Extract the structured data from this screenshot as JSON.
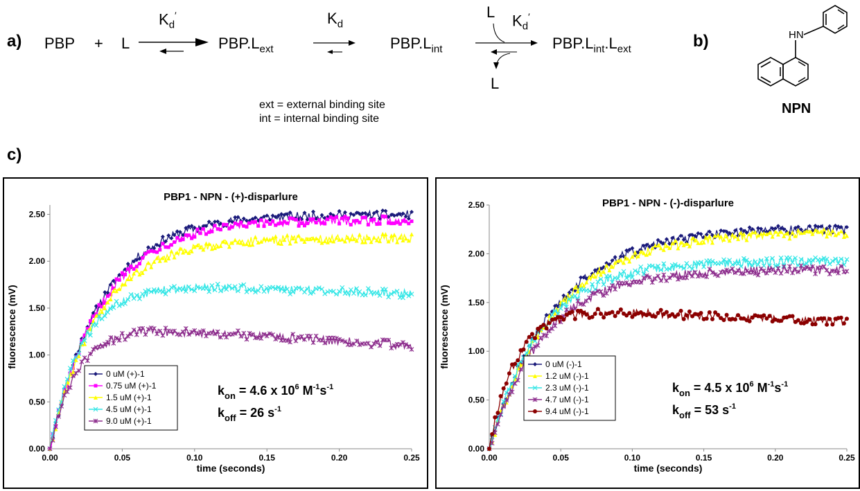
{
  "panel_labels": {
    "a": "a)",
    "b": "b)",
    "c": "c)"
  },
  "scheme": {
    "pbp": "PBP",
    "plus": "+",
    "ligand": "L",
    "k1": {
      "base": "K",
      "sub": "d",
      "prime": "′"
    },
    "prod1": {
      "base": "PBP.L",
      "sub": "ext"
    },
    "k2": {
      "base": "K",
      "sub": "d"
    },
    "prod2": {
      "base": "PBP.L",
      "sub": "int"
    },
    "k3": {
      "base": "K",
      "sub": "d",
      "prime": "′"
    },
    "l_in": "L",
    "l_out": "L",
    "prod3": {
      "base": "PBP.L",
      "sub1": "int",
      "mid": ".L",
      "sub2": "ext"
    },
    "note_ext": "ext = external binding site",
    "note_int": "int = internal binding site"
  },
  "molecule": {
    "nh": "HN",
    "name": "NPN"
  },
  "colors": {
    "s0": "#1a1a7a",
    "s075": "#ff00ff",
    "s15": "#ffff00",
    "s45": "#33e6e6",
    "s9": "#8b2a8b",
    "s94": "#8b0000"
  },
  "chart_data": [
    {
      "type": "scatter",
      "title": "PBP1 - NPN - (+)-disparlure",
      "xlabel": "time (seconds)",
      "ylabel": "fluorescence (mV)",
      "xlim": [
        0,
        0.25
      ],
      "ylim": [
        0,
        2.6
      ],
      "xticks": [
        "0.00",
        "0.05",
        "0.10",
        "0.15",
        "0.20",
        "0.25"
      ],
      "yticks": [
        "0.00",
        "0.50",
        "1.00",
        "1.50",
        "2.00",
        "2.50"
      ],
      "legend_position": "bottom-left",
      "annotation": {
        "kon_label": "k",
        "kon_sub": "on",
        "kon_text": " = 4.6 x 10",
        "kon_exp": "6",
        "kon_unit1": " M",
        "kon_unit1_exp": "-1",
        "kon_unit2": "s",
        "kon_unit2_exp": "-1",
        "koff_label": "k",
        "koff_sub": "off",
        "koff_text": " = 26 s",
        "koff_exp": "-1"
      },
      "series": [
        {
          "name": "0 uM (+)-1",
          "color": "#1a1a7a",
          "marker": "diamond",
          "plateau": 2.5,
          "rate": 28
        },
        {
          "name": "0.75 uM (+)-1",
          "color": "#ff00ff",
          "marker": "square",
          "plateau": 2.44,
          "rate": 28
        },
        {
          "name": "1.5 uM (+)-1",
          "color": "#ffff00",
          "marker": "triangle",
          "plateau": 2.25,
          "rate": 30
        },
        {
          "name": "4.5 uM (+)-1",
          "color": "#33e6e6",
          "marker": "x",
          "plateau": 1.75,
          "rate": 45,
          "end": 1.65
        },
        {
          "name": "9.0 uM (+)-1",
          "color": "#8b2a8b",
          "marker": "star",
          "plateau": 1.28,
          "rate": 55,
          "end": 1.1
        }
      ]
    },
    {
      "type": "scatter",
      "title": "PBP1 - NPN - (-)-disparlure",
      "xlabel": "time (seconds)",
      "ylabel": "fluorescence (mV)",
      "xlim": [
        0,
        0.25
      ],
      "ylim": [
        0,
        2.5
      ],
      "xticks": [
        "0.00",
        "0.05",
        "0.10",
        "0.15",
        "0.20",
        "0.25"
      ],
      "yticks": [
        "0.00",
        "0.50",
        "1.00",
        "1.50",
        "2.00",
        "2.50"
      ],
      "legend_position": "bottom-left",
      "annotation": {
        "kon_label": "k",
        "kon_sub": "on",
        "kon_text": " = 4.5 x 10",
        "kon_exp": "6",
        "kon_unit1": " M",
        "kon_unit1_exp": "-1",
        "kon_unit2": "s",
        "kon_unit2_exp": "-1",
        "koff_label": "k",
        "koff_sub": "off",
        "koff_text": " = 53 s",
        "koff_exp": "-1"
      },
      "series": [
        {
          "name": "0 uM (-)-1",
          "color": "#1a1a7a",
          "marker": "diamond",
          "plateau": 2.27,
          "rate": 22
        },
        {
          "name": "1.2 uM (-)-1",
          "color": "#ffff00",
          "marker": "triangle",
          "plateau": 2.22,
          "rate": 22
        },
        {
          "name": "2.3 uM (-)-1",
          "color": "#33e6e6",
          "marker": "x",
          "plateau": 1.92,
          "rate": 28
        },
        {
          "name": "4.7 uM (-)-1",
          "color": "#8b2a8b",
          "marker": "star",
          "plateau": 1.84,
          "rate": 26
        },
        {
          "name": "9.4 uM (-)-1",
          "color": "#8b0000",
          "marker": "circle",
          "plateau": 1.42,
          "rate": 55,
          "end": 1.3
        }
      ]
    }
  ]
}
